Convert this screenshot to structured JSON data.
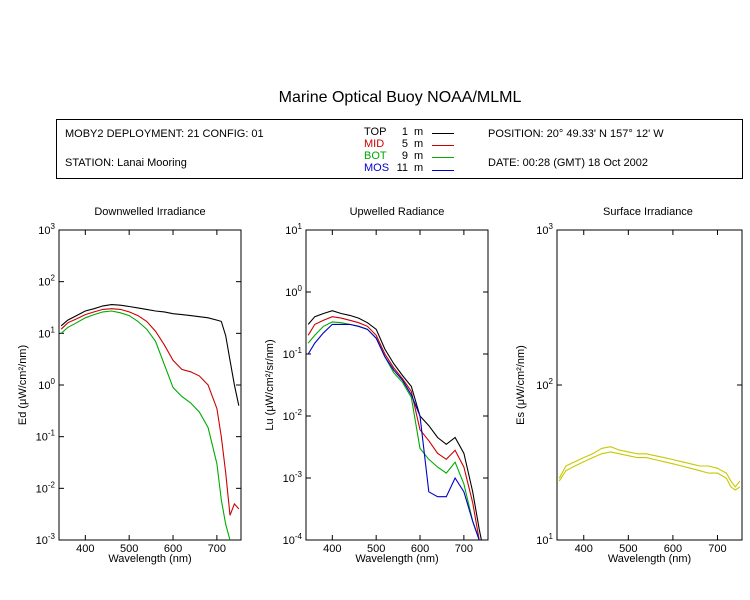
{
  "title": "Marine Optical Buoy NOAA/MLML",
  "info": {
    "deployment": "MOBY2 DEPLOYMENT: 21 CONFIG: 01",
    "station": "STATION: Lanai Mooring",
    "position": "POSITION: 20° 49.33' N   157° 12' W",
    "date": "DATE: 00:28 (GMT) 18 Oct 2002"
  },
  "legend": [
    {
      "name": "TOP",
      "depth": "1",
      "unit": "m",
      "color": "#000000"
    },
    {
      "name": "MID",
      "depth": "5",
      "unit": "m",
      "color": "#cc0000"
    },
    {
      "name": "BOT",
      "depth": "9",
      "unit": "m",
      "color": "#00aa00"
    },
    {
      "name": "MOS",
      "depth": "11",
      "unit": "m",
      "color": "#0000cc"
    }
  ],
  "chart_data": [
    {
      "type": "line",
      "title": "Downwelled Irradiance",
      "xlabel": "Wavelength (nm)",
      "ylabel": "Ed  (μW/cm²/nm)",
      "xlim": [
        340,
        755
      ],
      "ylim": [
        0.001,
        1000
      ],
      "yscale": "log",
      "xticks": [
        400,
        500,
        600,
        700
      ],
      "ytick_exponents": [
        -3,
        -2,
        -1,
        0,
        1,
        2,
        3
      ],
      "series": [
        {
          "name": "TOP",
          "color": "#000000",
          "x": [
            345,
            360,
            380,
            400,
            420,
            440,
            460,
            480,
            500,
            520,
            540,
            560,
            580,
            600,
            620,
            640,
            660,
            680,
            700,
            710,
            720,
            730,
            740,
            750
          ],
          "y": [
            14,
            18,
            22,
            27,
            30,
            34,
            36,
            35,
            33,
            31,
            29,
            27,
            26,
            24,
            23,
            22,
            21,
            20,
            18,
            17,
            9,
            3,
            1,
            0.4
          ]
        },
        {
          "name": "MID",
          "color": "#cc0000",
          "x": [
            345,
            360,
            380,
            400,
            420,
            440,
            460,
            480,
            500,
            520,
            540,
            560,
            580,
            600,
            620,
            640,
            660,
            680,
            700,
            710,
            720,
            730,
            740,
            750
          ],
          "y": [
            12,
            16,
            19,
            23,
            26,
            29,
            30,
            29,
            26,
            22,
            17,
            11,
            6,
            3,
            2,
            1.8,
            1.5,
            1.0,
            0.35,
            0.1,
            0.02,
            0.003,
            0.005,
            0.004
          ]
        },
        {
          "name": "BOT",
          "color": "#00aa00",
          "x": [
            345,
            360,
            380,
            400,
            420,
            440,
            460,
            480,
            500,
            520,
            540,
            560,
            580,
            600,
            620,
            640,
            660,
            680,
            700,
            710,
            720,
            730
          ],
          "y": [
            10,
            13,
            16,
            20,
            23,
            26,
            27,
            25,
            22,
            17,
            12,
            7,
            2.5,
            0.9,
            0.6,
            0.45,
            0.3,
            0.15,
            0.03,
            0.006,
            0.002,
            0.001
          ]
        }
      ]
    },
    {
      "type": "line",
      "title": "Upwelled Radiance",
      "xlabel": "Wavelength (nm)",
      "ylabel": "Lu  (μW/cm²/sr/nm)",
      "xlim": [
        340,
        755
      ],
      "ylim": [
        0.0001,
        10
      ],
      "yscale": "log",
      "xticks": [
        400,
        500,
        600,
        700
      ],
      "ytick_exponents": [
        -4,
        -3,
        -2,
        -1,
        0,
        1
      ],
      "series": [
        {
          "name": "TOP",
          "color": "#000000",
          "x": [
            345,
            360,
            380,
            400,
            420,
            440,
            460,
            480,
            500,
            520,
            540,
            560,
            580,
            600,
            620,
            640,
            660,
            680,
            700,
            720,
            735,
            740
          ],
          "y": [
            0.3,
            0.4,
            0.45,
            0.5,
            0.45,
            0.42,
            0.38,
            0.32,
            0.25,
            0.12,
            0.07,
            0.045,
            0.03,
            0.01,
            0.007,
            0.0045,
            0.0035,
            0.0045,
            0.0025,
            0.0006,
            0.00015,
            0.0001
          ]
        },
        {
          "name": "MID",
          "color": "#cc0000",
          "x": [
            345,
            360,
            380,
            400,
            420,
            440,
            460,
            480,
            500,
            520,
            540,
            560,
            580,
            600,
            620,
            640,
            660,
            680,
            700,
            720,
            735
          ],
          "y": [
            0.2,
            0.3,
            0.35,
            0.4,
            0.38,
            0.35,
            0.32,
            0.28,
            0.2,
            0.1,
            0.06,
            0.04,
            0.025,
            0.006,
            0.004,
            0.0025,
            0.002,
            0.0028,
            0.0015,
            0.0004,
            0.0001
          ]
        },
        {
          "name": "BOT",
          "color": "#00aa00",
          "x": [
            345,
            360,
            380,
            400,
            420,
            440,
            460,
            480,
            500,
            520,
            540,
            560,
            580,
            600,
            620,
            640,
            660,
            680,
            700,
            720,
            735
          ],
          "y": [
            0.15,
            0.2,
            0.28,
            0.33,
            0.32,
            0.3,
            0.28,
            0.25,
            0.18,
            0.09,
            0.05,
            0.035,
            0.02,
            0.003,
            0.002,
            0.0015,
            0.0012,
            0.0018,
            0.0008,
            0.0002,
            0.0001
          ]
        },
        {
          "name": "MOS",
          "color": "#0000cc",
          "x": [
            345,
            360,
            380,
            400,
            420,
            440,
            460,
            480,
            500,
            520,
            540,
            560,
            580,
            600,
            620,
            640,
            660,
            680,
            700,
            720,
            735
          ],
          "y": [
            0.1,
            0.15,
            0.22,
            0.3,
            0.3,
            0.3,
            0.28,
            0.25,
            0.18,
            0.09,
            0.055,
            0.038,
            0.022,
            0.01,
            0.0006,
            0.0005,
            0.0005,
            0.001,
            0.0006,
            0.0002,
            0.0001
          ]
        }
      ]
    },
    {
      "type": "line",
      "title": "Surface Irradiance",
      "xlabel": "Wavelength (nm)",
      "ylabel": "Es  (μW/cm²/nm)",
      "xlim": [
        340,
        755
      ],
      "ylim": [
        10,
        1000
      ],
      "yscale": "log",
      "xticks": [
        400,
        500,
        600,
        700
      ],
      "ytick_exponents": [
        1,
        2,
        3
      ],
      "series": [
        {
          "color": "#c8c800",
          "x": [
            345,
            360,
            380,
            400,
            420,
            440,
            460,
            480,
            500,
            520,
            540,
            560,
            580,
            600,
            620,
            640,
            660,
            680,
            700,
            720,
            730,
            740,
            750
          ],
          "y": [
            25,
            30,
            32,
            34,
            36,
            39,
            40,
            38,
            37,
            36,
            36,
            35,
            34,
            33,
            32,
            31,
            30,
            30,
            29,
            27,
            24,
            22,
            24
          ]
        },
        {
          "color": "#c8c800",
          "x": [
            345,
            360,
            380,
            400,
            420,
            440,
            460,
            480,
            500,
            520,
            540,
            560,
            580,
            600,
            620,
            640,
            660,
            680,
            700,
            720,
            730,
            740,
            750
          ],
          "y": [
            24,
            28,
            30,
            32,
            34,
            36,
            37,
            36,
            35,
            34,
            34,
            33,
            32,
            31,
            30,
            29,
            28,
            27,
            27,
            25,
            22,
            21,
            22
          ]
        }
      ]
    }
  ]
}
